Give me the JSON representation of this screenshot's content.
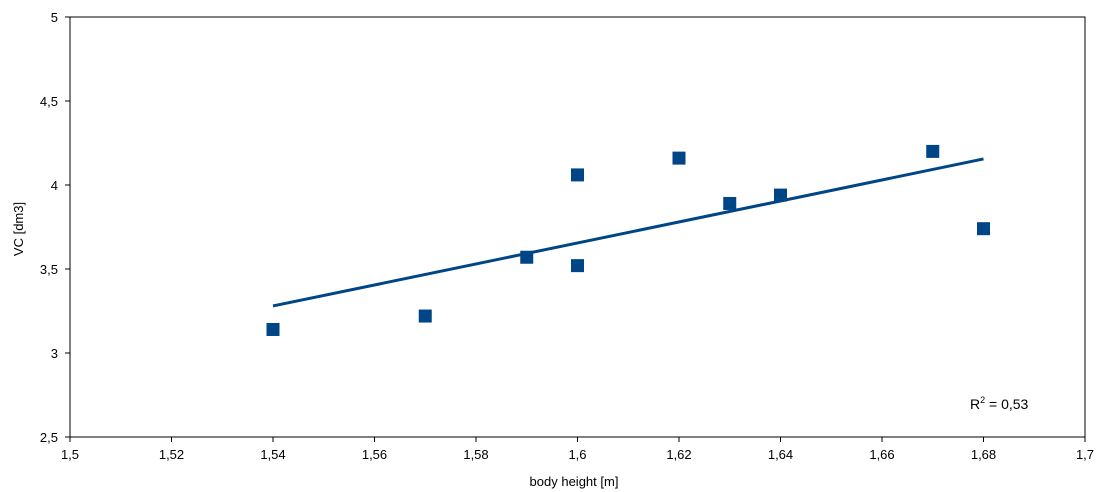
{
  "chart_data": {
    "type": "scatter",
    "title": "",
    "xlabel": "body height  [m]",
    "ylabel": "VC [dm3]",
    "xlim": [
      1.5,
      1.7
    ],
    "ylim": [
      2.5,
      5
    ],
    "x_ticks": [
      "1,5",
      "1,52",
      "1,54",
      "1,56",
      "1,58",
      "1,6",
      "1,62",
      "1,64",
      "1,66",
      "1,68",
      "1,7"
    ],
    "y_ticks": [
      "2,5",
      "3",
      "3,5",
      "4",
      "4,5",
      "5"
    ],
    "grid": false,
    "marker": "square",
    "series": [
      {
        "points": [
          {
            "x": 1.54,
            "y": 3.14
          },
          {
            "x": 1.57,
            "y": 3.22
          },
          {
            "x": 1.59,
            "y": 3.57
          },
          {
            "x": 1.6,
            "y": 4.06
          },
          {
            "x": 1.6,
            "y": 3.52
          },
          {
            "x": 1.62,
            "y": 4.16
          },
          {
            "x": 1.63,
            "y": 3.89
          },
          {
            "x": 1.64,
            "y": 3.94
          },
          {
            "x": 1.67,
            "y": 4.2
          },
          {
            "x": 1.68,
            "y": 3.74
          }
        ]
      }
    ],
    "trendline": {
      "type": "linear",
      "from": {
        "x": 1.54,
        "y": 3.28
      },
      "to": {
        "x": 1.68,
        "y": 4.155
      }
    },
    "annotation": {
      "r2_label": "R",
      "r2_superscript": "2",
      "r2_value": " = 0,53"
    },
    "colors": {
      "marker": "#004586",
      "trendline": "#004586",
      "axis": "#000000"
    }
  }
}
